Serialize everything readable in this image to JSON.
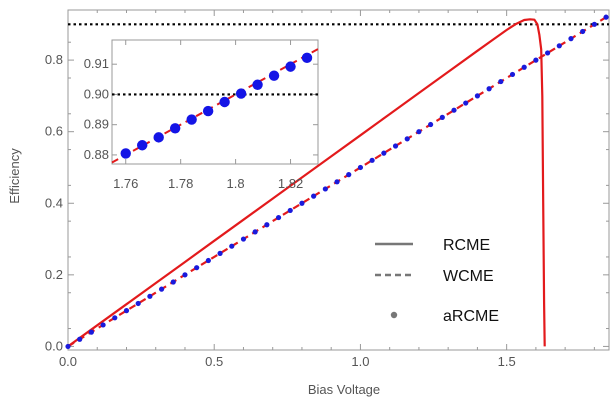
{
  "chart_data": {
    "type": "line",
    "xlabel": "Bias Voltage",
    "ylabel": "Efficiency",
    "xlim": [
      0,
      1.85
    ],
    "ylim": [
      -0.01,
      0.94
    ],
    "xticks": [
      0,
      0.5,
      1,
      1.5
    ],
    "xtick_labels": [
      "0.0",
      "0.5",
      "1.0",
      "1.5"
    ],
    "yticks": [
      0,
      0.2,
      0.4,
      0.6,
      0.8
    ],
    "ytick_labels": [
      "0.0",
      "0.2",
      "0.4",
      "0.6",
      "0.8"
    ],
    "grid": false,
    "legend_position": "bottom-right",
    "reference_line": {
      "y": 0.9,
      "style": "dotted",
      "color": "#000000"
    },
    "series": [
      {
        "name": "RCME",
        "color": "#e31a1c",
        "style": "solid",
        "x": [
          0,
          0.1,
          0.2,
          0.3,
          0.4,
          0.5,
          0.6,
          0.7,
          0.8,
          0.9,
          1.0,
          1.1,
          1.2,
          1.3,
          1.4,
          1.45,
          1.5,
          1.53,
          1.56,
          1.58,
          1.595,
          1.605,
          1.612,
          1.618,
          1.622,
          1.625,
          1.628,
          1.63
        ],
        "y": [
          0,
          0.059,
          0.118,
          0.177,
          0.236,
          0.295,
          0.354,
          0.413,
          0.472,
          0.531,
          0.59,
          0.649,
          0.708,
          0.767,
          0.826,
          0.855,
          0.884,
          0.9,
          0.912,
          0.914,
          0.913,
          0.9,
          0.87,
          0.83,
          0.7,
          0.4,
          0.12,
          0
        ]
      },
      {
        "name": "WCME",
        "color": "#e31a1c",
        "style": "dashed",
        "x": [
          0,
          0.5,
          1.0,
          1.5,
          1.84
        ],
        "y": [
          0,
          0.25,
          0.5,
          0.75,
          0.92
        ]
      },
      {
        "name": "aRCME",
        "color": "#1a1adc",
        "style": "markers",
        "x": [
          0,
          0.04,
          0.08,
          0.12,
          0.16,
          0.2,
          0.24,
          0.28,
          0.32,
          0.36,
          0.4,
          0.44,
          0.48,
          0.52,
          0.56,
          0.6,
          0.64,
          0.68,
          0.72,
          0.76,
          0.8,
          0.84,
          0.88,
          0.92,
          0.96,
          1.0,
          1.04,
          1.08,
          1.12,
          1.16,
          1.2,
          1.24,
          1.28,
          1.32,
          1.36,
          1.4,
          1.44,
          1.48,
          1.52,
          1.56,
          1.6,
          1.64,
          1.68,
          1.72,
          1.76,
          1.8,
          1.84
        ],
        "y": [
          0,
          0.02,
          0.04,
          0.06,
          0.08,
          0.1,
          0.12,
          0.14,
          0.16,
          0.18,
          0.2,
          0.22,
          0.24,
          0.26,
          0.28,
          0.3,
          0.32,
          0.34,
          0.36,
          0.38,
          0.4,
          0.42,
          0.44,
          0.46,
          0.48,
          0.5,
          0.52,
          0.54,
          0.56,
          0.58,
          0.6,
          0.62,
          0.64,
          0.66,
          0.68,
          0.7,
          0.72,
          0.74,
          0.76,
          0.78,
          0.8,
          0.82,
          0.84,
          0.86,
          0.88,
          0.9,
          0.92
        ]
      }
    ],
    "legend_labels": [
      "RCME",
      "WCME",
      "aRCME"
    ],
    "legend_color": "#777777",
    "inset": {
      "xlim": [
        1.755,
        1.83
      ],
      "ylim": [
        0.877,
        0.918
      ],
      "xticks": [
        1.76,
        1.78,
        1.8,
        1.82
      ],
      "xtick_labels": [
        "1.76",
        "1.78",
        "1.8",
        "1.82"
      ],
      "yticks": [
        0.88,
        0.89,
        0.9,
        0.91
      ],
      "ytick_labels": [
        "0.88",
        "0.89",
        "0.90",
        "0.91"
      ],
      "line": {
        "x": [
          1.755,
          1.83
        ],
        "y": [
          0.8775,
          0.915
        ]
      },
      "points": {
        "x": [
          1.76,
          1.766,
          1.772,
          1.778,
          1.784,
          1.79,
          1.796,
          1.802,
          1.808,
          1.814,
          1.82,
          1.826
        ],
        "y": [
          0.8805,
          0.8832,
          0.8858,
          0.8888,
          0.8917,
          0.8945,
          0.8975,
          0.9003,
          0.9032,
          0.9062,
          0.9092,
          0.9121
        ]
      },
      "reference_y": 0.9
    }
  }
}
